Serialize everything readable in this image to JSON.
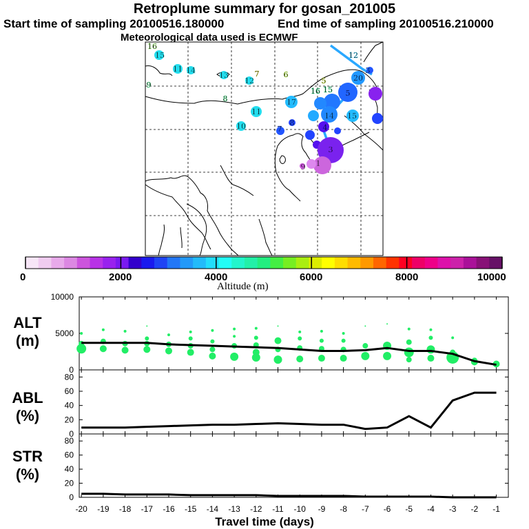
{
  "header": {
    "title": "Retroplume summary for gosan_201005",
    "start": "Start time of sampling 20100516.180000",
    "end": "End time of sampling 20100516.210000",
    "met": "Meteorological data used is ECMWF"
  },
  "colors": {
    "trajectory": "#2aa8ff",
    "marker": "#22ee66",
    "line": "#000000"
  },
  "colorbar": {
    "label": "Altitude (m)",
    "min": 0,
    "max": 10000,
    "labels": [
      "0",
      "2000",
      "4000",
      "6000",
      "8000",
      "10000"
    ],
    "colors": [
      "#f7e6f7",
      "#f0ccf0",
      "#e8aaea",
      "#dc88e2",
      "#cc55dd",
      "#b833e6",
      "#9922ee",
      "#7a1af0",
      "#3300cc",
      "#1a1aee",
      "#1f44f4",
      "#2277f7",
      "#2299f9",
      "#22bbfa",
      "#22ddfb",
      "#22fcf6",
      "#22f5cc",
      "#22f0a8",
      "#22ee80",
      "#44ee44",
      "#77ee22",
      "#aaee11",
      "#dded00",
      "#ffff00",
      "#ffdd00",
      "#ffbb00",
      "#ff9900",
      "#ff6600",
      "#ff3300",
      "#ff0022",
      "#ee0066",
      "#ee0088",
      "#dd11aa",
      "#cc22aa",
      "#aa1199",
      "#881177",
      "#661166"
    ]
  },
  "map": {
    "labels": [
      {
        "text": "16",
        "x": 221,
        "y": 67,
        "c": "#8be85a"
      },
      {
        "text": "15",
        "x": 232,
        "y": 80,
        "c": "#22ddee"
      },
      {
        "text": "11",
        "x": 258,
        "y": 100,
        "c": "#22ddee"
      },
      {
        "text": "14",
        "x": 277,
        "y": 102,
        "c": "#22ddee"
      },
      {
        "text": "13",
        "x": 325,
        "y": 109,
        "c": "#22ddee"
      },
      {
        "text": "7",
        "x": 373,
        "y": 107,
        "c": "#dddd22"
      },
      {
        "text": "6",
        "x": 415,
        "y": 108,
        "c": "#aaee22"
      },
      {
        "text": "12",
        "x": 362,
        "y": 117,
        "c": "#22ddee"
      },
      {
        "text": "5",
        "x": 470,
        "y": 117,
        "c": "#ccee22"
      },
      {
        "text": "9",
        "x": 216,
        "y": 123,
        "c": "#44ee88"
      },
      {
        "text": "8",
        "x": 327,
        "y": 143,
        "c": "#44ee88"
      },
      {
        "text": "11",
        "x": 372,
        "y": 162,
        "c": "#22ddee"
      },
      {
        "text": "10",
        "x": 350,
        "y": 183,
        "c": "#22ddee"
      },
      {
        "text": "12",
        "x": 513,
        "y": 80,
        "c": "#22ccff"
      },
      {
        "text": "20",
        "x": 520,
        "y": 113,
        "c": "#2288ff"
      },
      {
        "text": "3",
        "x": 534,
        "y": 102,
        "c": "#2277ff"
      },
      {
        "text": "5",
        "x": 505,
        "y": 135,
        "c": "#2255ff"
      },
      {
        "text": "16",
        "x": 458,
        "y": 132,
        "c": "#22ee88"
      },
      {
        "text": "15",
        "x": 476,
        "y": 130,
        "c": "#22ee88"
      },
      {
        "text": "17",
        "x": 423,
        "y": 148,
        "c": "#22bbff"
      },
      {
        "text": "15",
        "x": 511,
        "y": 168,
        "c": "#22bbff"
      },
      {
        "text": "14",
        "x": 478,
        "y": 168,
        "c": "#2299ff"
      },
      {
        "text": "8",
        "x": 424,
        "y": 178,
        "c": "#2255ff"
      },
      {
        "text": "7",
        "x": 406,
        "y": 187,
        "c": "#2255ff"
      },
      {
        "text": "4",
        "x": 472,
        "y": 185,
        "c": "#3322ee"
      },
      {
        "text": "3",
        "x": 480,
        "y": 217,
        "c": "#7a22ee"
      },
      {
        "text": "1",
        "x": 462,
        "y": 237,
        "c": "#cc66dd"
      },
      {
        "text": "9",
        "x": 440,
        "y": 242,
        "c": "#cc66dd"
      }
    ],
    "circles": [
      {
        "x": 231,
        "y": 80,
        "r": 7,
        "c": "#22ddee"
      },
      {
        "x": 258,
        "y": 100,
        "r": 7,
        "c": "#22ddee"
      },
      {
        "x": 277,
        "y": 102,
        "r": 6,
        "c": "#22ddee"
      },
      {
        "x": 325,
        "y": 109,
        "r": 6,
        "c": "#22ddee"
      },
      {
        "x": 362,
        "y": 117,
        "r": 6,
        "c": "#22ddee"
      },
      {
        "x": 372,
        "y": 162,
        "r": 8,
        "c": "#22ddee"
      },
      {
        "x": 350,
        "y": 183,
        "r": 7,
        "c": "#22ddee"
      },
      {
        "x": 423,
        "y": 148,
        "r": 9,
        "c": "#22bbff"
      },
      {
        "x": 512,
        "y": 168,
        "r": 9,
        "c": "#22bbff"
      },
      {
        "x": 520,
        "y": 113,
        "r": 10,
        "c": "#2299ff"
      },
      {
        "x": 505,
        "y": 134,
        "r": 14,
        "c": "#2266ff"
      },
      {
        "x": 482,
        "y": 148,
        "r": 12,
        "c": "#2277ff"
      },
      {
        "x": 465,
        "y": 150,
        "r": 9,
        "c": "#2288ff"
      },
      {
        "x": 478,
        "y": 166,
        "r": 12,
        "c": "#2288ff"
      },
      {
        "x": 455,
        "y": 168,
        "r": 8,
        "c": "#22aaff"
      },
      {
        "x": 545,
        "y": 136,
        "r": 10,
        "c": "#8822ee"
      },
      {
        "x": 548,
        "y": 172,
        "r": 8,
        "c": "#2244ff"
      },
      {
        "x": 537,
        "y": 102,
        "r": 5,
        "c": "#2255ff"
      },
      {
        "x": 450,
        "y": 196,
        "r": 7,
        "c": "#2244ff"
      },
      {
        "x": 424,
        "y": 178,
        "r": 5,
        "c": "#2244ff"
      },
      {
        "x": 407,
        "y": 190,
        "r": 6,
        "c": "#2255ff"
      },
      {
        "x": 490,
        "y": 190,
        "r": 5,
        "c": "#2244ff"
      },
      {
        "x": 470,
        "y": 184,
        "r": 8,
        "c": "#5511ee"
      },
      {
        "x": 460,
        "y": 210,
        "r": 6,
        "c": "#5511ee"
      },
      {
        "x": 480,
        "y": 218,
        "r": 19,
        "c": "#7a22ee"
      },
      {
        "x": 468,
        "y": 240,
        "r": 13,
        "c": "#cc66dd"
      },
      {
        "x": 452,
        "y": 238,
        "r": 7,
        "c": "#dd88ee"
      },
      {
        "x": 439,
        "y": 241,
        "r": 4,
        "c": "#cc55dd"
      }
    ]
  },
  "chart_data": [
    {
      "type": "scatter",
      "panel": "ALT",
      "ylabel": "ALT (m)",
      "ylim": [
        0,
        10000
      ],
      "yticks": [
        "10000",
        "5000",
        "0"
      ],
      "xlim": [
        -20,
        -0.5
      ],
      "median_line": {
        "x": [
          -20,
          -19,
          -18,
          -17,
          -16,
          -15,
          -14,
          -13,
          -12,
          -11,
          -10,
          -9,
          -8,
          -7,
          -6,
          -5,
          -4,
          -3,
          -2,
          -1
        ],
        "y": [
          3700,
          3700,
          3700,
          3700,
          3500,
          3400,
          3300,
          3200,
          3100,
          3000,
          2800,
          2600,
          2600,
          2700,
          3000,
          2600,
          2600,
          2200,
          1200,
          700
        ]
      },
      "scatter": [
        {
          "x": -20,
          "y": 2900,
          "s": 7
        },
        {
          "x": -20,
          "y": 3600,
          "s": 4
        },
        {
          "x": -20,
          "y": 5000,
          "s": 2
        },
        {
          "x": -19,
          "y": 2900,
          "s": 5
        },
        {
          "x": -19,
          "y": 3900,
          "s": 4
        },
        {
          "x": -19,
          "y": 5500,
          "s": 2
        },
        {
          "x": -18,
          "y": 2700,
          "s": 5
        },
        {
          "x": -18,
          "y": 3600,
          "s": 4
        },
        {
          "x": -18,
          "y": 5300,
          "s": 2
        },
        {
          "x": -17,
          "y": 2800,
          "s": 5
        },
        {
          "x": -17,
          "y": 3600,
          "s": 4
        },
        {
          "x": -17,
          "y": 4300,
          "s": 3
        },
        {
          "x": -17,
          "y": 6000,
          "s": 1
        },
        {
          "x": -16,
          "y": 2600,
          "s": 5
        },
        {
          "x": -16,
          "y": 3500,
          "s": 4
        },
        {
          "x": -16,
          "y": 4800,
          "s": 2
        },
        {
          "x": -15,
          "y": 2400,
          "s": 5
        },
        {
          "x": -15,
          "y": 3300,
          "s": 4
        },
        {
          "x": -15,
          "y": 4300,
          "s": 3
        },
        {
          "x": -15,
          "y": 5200,
          "s": 2
        },
        {
          "x": -14,
          "y": 1900,
          "s": 5
        },
        {
          "x": -14,
          "y": 2800,
          "s": 4
        },
        {
          "x": -14,
          "y": 3900,
          "s": 3
        },
        {
          "x": -14,
          "y": 5400,
          "s": 2
        },
        {
          "x": -13,
          "y": 1800,
          "s": 6
        },
        {
          "x": -13,
          "y": 3300,
          "s": 4
        },
        {
          "x": -13,
          "y": 4600,
          "s": 2
        },
        {
          "x": -13,
          "y": 5600,
          "s": 2
        },
        {
          "x": -12,
          "y": 1700,
          "s": 6
        },
        {
          "x": -12,
          "y": 2400,
          "s": 5
        },
        {
          "x": -12,
          "y": 3400,
          "s": 4
        },
        {
          "x": -12,
          "y": 4400,
          "s": 3
        },
        {
          "x": -12,
          "y": 5700,
          "s": 2
        },
        {
          "x": -11,
          "y": 1400,
          "s": 6
        },
        {
          "x": -11,
          "y": 2800,
          "s": 4
        },
        {
          "x": -11,
          "y": 4000,
          "s": 5
        },
        {
          "x": -11,
          "y": 6000,
          "s": 1
        },
        {
          "x": -10,
          "y": 1500,
          "s": 5
        },
        {
          "x": -10,
          "y": 3000,
          "s": 4
        },
        {
          "x": -10,
          "y": 4300,
          "s": 3
        },
        {
          "x": -10,
          "y": 5200,
          "s": 2
        },
        {
          "x": -9,
          "y": 1600,
          "s": 5
        },
        {
          "x": -9,
          "y": 2900,
          "s": 4
        },
        {
          "x": -9,
          "y": 4000,
          "s": 3
        },
        {
          "x": -9,
          "y": 5300,
          "s": 2
        },
        {
          "x": -8,
          "y": 1600,
          "s": 5
        },
        {
          "x": -8,
          "y": 2800,
          "s": 4
        },
        {
          "x": -8,
          "y": 4000,
          "s": 3
        },
        {
          "x": -8,
          "y": 5000,
          "s": 2
        },
        {
          "x": -7,
          "y": 1900,
          "s": 6
        },
        {
          "x": -7,
          "y": 3300,
          "s": 4
        },
        {
          "x": -7,
          "y": 6000,
          "s": 1
        },
        {
          "x": -6,
          "y": 1900,
          "s": 6
        },
        {
          "x": -6,
          "y": 3300,
          "s": 6
        },
        {
          "x": -6,
          "y": 6300,
          "s": 1
        },
        {
          "x": -5,
          "y": 1400,
          "s": 4
        },
        {
          "x": -5,
          "y": 2400,
          "s": 7
        },
        {
          "x": -5,
          "y": 3800,
          "s": 4
        },
        {
          "x": -5,
          "y": 5600,
          "s": 2
        },
        {
          "x": -4,
          "y": 1600,
          "s": 5
        },
        {
          "x": -4,
          "y": 2800,
          "s": 6
        },
        {
          "x": -4,
          "y": 4400,
          "s": 3
        },
        {
          "x": -4,
          "y": 5500,
          "s": 2
        },
        {
          "x": -3,
          "y": 1700,
          "s": 9
        },
        {
          "x": -3,
          "y": 2400,
          "s": 4
        },
        {
          "x": -3,
          "y": 4400,
          "s": 2
        },
        {
          "x": -2,
          "y": 1100,
          "s": 5
        },
        {
          "x": -2,
          "y": 1300,
          "s": 4
        },
        {
          "x": -1,
          "y": 800,
          "s": 5
        }
      ]
    },
    {
      "type": "line",
      "panel": "ABL",
      "ylabel": "ABL (%)",
      "ylim": [
        0,
        90
      ],
      "yticks": [
        "80",
        "60",
        "40",
        "20",
        "0"
      ],
      "x": [
        -20,
        -19,
        -18,
        -17,
        -16,
        -15,
        -14,
        -13,
        -12,
        -11,
        -10,
        -9,
        -8,
        -7,
        -6,
        -5,
        -4,
        -3,
        -2,
        -1
      ],
      "y": [
        9,
        9,
        9,
        10,
        11,
        12,
        13,
        13,
        14,
        15,
        14,
        13,
        13,
        7,
        9,
        25,
        9,
        47,
        58,
        58
      ]
    },
    {
      "type": "line",
      "panel": "STR",
      "ylabel": "STR (%)",
      "ylim": [
        0,
        90
      ],
      "yticks": [
        "80",
        "60",
        "40",
        "20",
        "0"
      ],
      "x": [
        -20,
        -19,
        -18,
        -17,
        -16,
        -15,
        -14,
        -13,
        -12,
        -11,
        -10,
        -9,
        -8,
        -7,
        -6,
        -5,
        -4,
        -3,
        -2,
        -1
      ],
      "y": [
        5,
        5,
        4,
        4,
        4,
        3,
        3,
        3,
        3,
        2,
        2,
        2,
        2,
        1,
        1,
        1,
        1,
        0,
        0,
        0
      ]
    }
  ],
  "xaxis": {
    "title": "Travel time (days)",
    "ticks": [
      "-20",
      "-19",
      "-18",
      "-17",
      "-16",
      "-15",
      "-14",
      "-13",
      "-12",
      "-11",
      "-10",
      "-9",
      "-8",
      "-7",
      "-6",
      "-5",
      "-4",
      "-3",
      "-2",
      "-1"
    ]
  },
  "panel_labels": {
    "alt": [
      "ALT",
      "(m)"
    ],
    "abl": [
      "ABL",
      "(%)"
    ],
    "str": [
      "STR",
      "(%)"
    ]
  }
}
